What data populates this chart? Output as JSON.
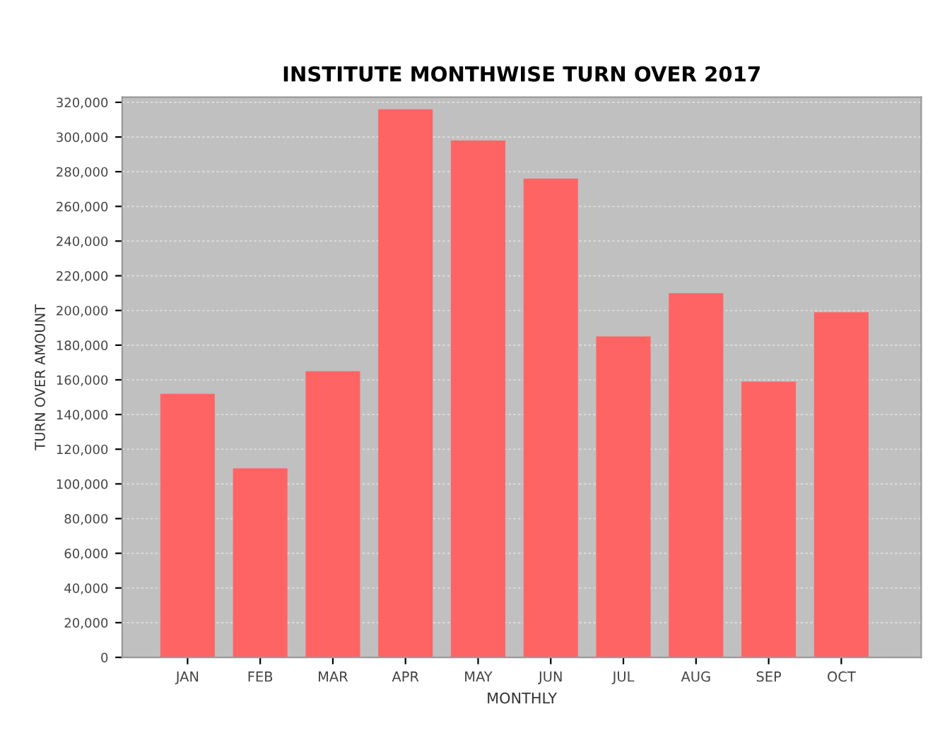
{
  "chart_data": {
    "type": "bar",
    "title": "INSTITUTE MONTHWISE TURN OVER 2017",
    "xlabel": "MONTHLY",
    "ylabel": "TURN OVER AMOUNT",
    "categories": [
      "JAN",
      "FEB",
      "MAR",
      "APR",
      "MAY",
      "JUN",
      "JUL",
      "AUG",
      "SEP",
      "OCT"
    ],
    "values": [
      152000,
      109000,
      165000,
      316000,
      298000,
      276000,
      185000,
      210000,
      159000,
      199000
    ],
    "color": "#ff6464",
    "ylim": [
      0,
      323000
    ],
    "yticks": [
      0,
      {
        "value": 20000,
        "label": "20,000"
      },
      {
        "value": 40000,
        "label": "40,000"
      },
      {
        "value": 60000,
        "label": "60,000"
      },
      {
        "value": 80000,
        "label": "80,000"
      },
      {
        "value": 100000,
        "label": "100,000"
      },
      {
        "value": 120000,
        "label": "120,000"
      },
      {
        "value": 140000,
        "label": "140,000"
      },
      {
        "value": 160000,
        "label": "160,000"
      },
      {
        "value": 180000,
        "label": "180,000"
      },
      {
        "value": 200000,
        "label": "200,000"
      },
      {
        "value": 220000,
        "label": "220,000"
      },
      {
        "value": 240000,
        "label": "240,000"
      },
      {
        "value": 260000,
        "label": "260,000"
      },
      {
        "value": 280000,
        "label": "280,000"
      },
      {
        "value": 300000,
        "label": "300,000"
      },
      {
        "value": 320000,
        "label": "320,000"
      }
    ],
    "grid": "y"
  }
}
